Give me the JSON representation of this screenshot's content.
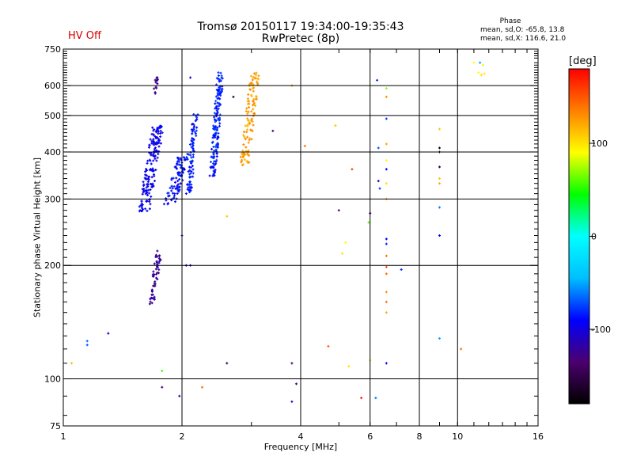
{
  "header": {
    "title_line1": "Tromsø 20150117 19:34:00-19:35:43",
    "title_line2": "RwPretec (8p)",
    "hv_status": "HV Off",
    "phase_heading": "Phase",
    "phase_o": "mean, sd,O: -65.8, 13.8",
    "phase_x": "mean, sd,X: 116.6, 21.0"
  },
  "colorbar": {
    "unit": "[deg]",
    "ticks": [
      {
        "value": 100,
        "label": "100"
      },
      {
        "value": 0,
        "label": "0"
      },
      {
        "value": -100,
        "label": "-100"
      }
    ],
    "range": [
      -180,
      180
    ],
    "stops": [
      "#000000",
      "#4b006e",
      "#0000ff",
      "#00bfff",
      "#00ffff",
      "#00ff00",
      "#ffff00",
      "#ff8000",
      "#ff0000"
    ]
  },
  "chart_data": {
    "type": "scatter",
    "title": "Tromsø 20150117 19:34:00-19:35:43",
    "subtitle": "RwPretec (8p)",
    "xlabel": "Frequency [MHz]",
    "ylabel": "Stationary phase Virtual Height [km]",
    "xscale": "log",
    "yscale": "log",
    "xlim": [
      1,
      16
    ],
    "ylim": [
      75,
      750
    ],
    "x_ticks": [
      {
        "value": 1,
        "label": "1"
      },
      {
        "value": 2,
        "label": "2"
      },
      {
        "value": 4,
        "label": "4"
      },
      {
        "value": 6,
        "label": "6"
      },
      {
        "value": 8,
        "label": "8"
      },
      {
        "value": 10,
        "label": "10"
      },
      {
        "value": 16,
        "label": "16"
      }
    ],
    "y_ticks": [
      {
        "value": 75,
        "label": "75"
      },
      {
        "value": 100,
        "label": "100"
      },
      {
        "value": 200,
        "label": "200"
      },
      {
        "value": 300,
        "label": "300"
      },
      {
        "value": 400,
        "label": "400"
      },
      {
        "value": 500,
        "label": "500"
      },
      {
        "value": 600,
        "label": "600"
      },
      {
        "value": 750,
        "label": "750"
      }
    ],
    "grid": true,
    "color_encodes": "phase [deg]",
    "clusters": [
      {
        "x_range": [
          1.55,
          1.8
        ],
        "y_range": [
          278,
          470
        ],
        "phase": -95,
        "count": 170
      },
      {
        "x_range": [
          1.8,
          2.1
        ],
        "y_range": [
          290,
          395
        ],
        "phase": -88,
        "count": 90
      },
      {
        "x_range": [
          2.05,
          2.2
        ],
        "y_range": [
          310,
          510
        ],
        "phase": -85,
        "count": 80
      },
      {
        "x_range": [
          2.35,
          2.55
        ],
        "y_range": [
          345,
          650
        ],
        "phase": -83,
        "count": 160
      },
      {
        "x_range": [
          2.8,
          3.15
        ],
        "y_range": [
          365,
          650
        ],
        "phase": 125,
        "count": 120
      },
      {
        "x_range": [
          1.65,
          1.78
        ],
        "y_range": [
          158,
          220
        ],
        "phase": -120,
        "count": 55
      },
      {
        "x_range": [
          1.68,
          1.75
        ],
        "y_range": [
          570,
          640
        ],
        "phase": -125,
        "count": 14
      }
    ],
    "points": [
      {
        "x": 1.05,
        "y": 110,
        "phase": 115
      },
      {
        "x": 1.15,
        "y": 123,
        "phase": -70
      },
      {
        "x": 1.15,
        "y": 126,
        "phase": -65
      },
      {
        "x": 1.3,
        "y": 132,
        "phase": -95
      },
      {
        "x": 1.78,
        "y": 105,
        "phase": 55
      },
      {
        "x": 1.78,
        "y": 95,
        "phase": -130
      },
      {
        "x": 1.97,
        "y": 90,
        "phase": -100
      },
      {
        "x": 2.0,
        "y": 240,
        "phase": -80
      },
      {
        "x": 2.05,
        "y": 200,
        "phase": -95
      },
      {
        "x": 2.1,
        "y": 200,
        "phase": -95
      },
      {
        "x": 2.1,
        "y": 630,
        "phase": -95
      },
      {
        "x": 2.25,
        "y": 95,
        "phase": 140
      },
      {
        "x": 2.6,
        "y": 110,
        "phase": -150
      },
      {
        "x": 2.6,
        "y": 270,
        "phase": 110
      },
      {
        "x": 2.7,
        "y": 560,
        "phase": -155
      },
      {
        "x": 3.4,
        "y": 455,
        "phase": -130
      },
      {
        "x": 3.8,
        "y": 110,
        "phase": -140
      },
      {
        "x": 3.8,
        "y": 87,
        "phase": -110
      },
      {
        "x": 3.9,
        "y": 97,
        "phase": -140
      },
      {
        "x": 3.8,
        "y": 600,
        "phase": 130
      },
      {
        "x": 4.1,
        "y": 415,
        "phase": 140
      },
      {
        "x": 4.7,
        "y": 122,
        "phase": 150
      },
      {
        "x": 4.9,
        "y": 470,
        "phase": 110
      },
      {
        "x": 5.0,
        "y": 280,
        "phase": -130
      },
      {
        "x": 5.1,
        "y": 215,
        "phase": 100
      },
      {
        "x": 5.2,
        "y": 230,
        "phase": 90
      },
      {
        "x": 5.3,
        "y": 108,
        "phase": 100
      },
      {
        "x": 5.4,
        "y": 360,
        "phase": 155
      },
      {
        "x": 5.7,
        "y": 89,
        "phase": 170
      },
      {
        "x": 5.95,
        "y": 260,
        "phase": 60
      },
      {
        "x": 6.0,
        "y": 112,
        "phase": 100
      },
      {
        "x": 6.0,
        "y": 275,
        "phase": -140
      },
      {
        "x": 6.2,
        "y": 89,
        "phase": -60
      },
      {
        "x": 6.25,
        "y": 620,
        "phase": -80
      },
      {
        "x": 6.3,
        "y": 410,
        "phase": -70
      },
      {
        "x": 6.3,
        "y": 335,
        "phase": -110
      },
      {
        "x": 6.35,
        "y": 320,
        "phase": -80
      },
      {
        "x": 6.6,
        "y": 590,
        "phase": 70
      },
      {
        "x": 6.6,
        "y": 560,
        "phase": 130
      },
      {
        "x": 6.6,
        "y": 490,
        "phase": -75
      },
      {
        "x": 6.6,
        "y": 420,
        "phase": 120
      },
      {
        "x": 6.6,
        "y": 380,
        "phase": 90
      },
      {
        "x": 6.6,
        "y": 360,
        "phase": -90
      },
      {
        "x": 6.6,
        "y": 330,
        "phase": 100
      },
      {
        "x": 6.6,
        "y": 300,
        "phase": 120
      },
      {
        "x": 6.6,
        "y": 235,
        "phase": -90
      },
      {
        "x": 6.6,
        "y": 228,
        "phase": -80
      },
      {
        "x": 6.6,
        "y": 212,
        "phase": 140
      },
      {
        "x": 6.6,
        "y": 198,
        "phase": 150
      },
      {
        "x": 6.6,
        "y": 190,
        "phase": 140
      },
      {
        "x": 6.6,
        "y": 170,
        "phase": 130
      },
      {
        "x": 6.6,
        "y": 160,
        "phase": 140
      },
      {
        "x": 6.6,
        "y": 150,
        "phase": 120
      },
      {
        "x": 6.6,
        "y": 110,
        "phase": -90
      },
      {
        "x": 7.2,
        "y": 195,
        "phase": -80
      },
      {
        "x": 9.0,
        "y": 460,
        "phase": 110
      },
      {
        "x": 9.0,
        "y": 410,
        "phase": -170
      },
      {
        "x": 9.0,
        "y": 400,
        "phase": -160
      },
      {
        "x": 9.0,
        "y": 365,
        "phase": -150
      },
      {
        "x": 9.0,
        "y": 340,
        "phase": 110
      },
      {
        "x": 9.0,
        "y": 330,
        "phase": 120
      },
      {
        "x": 9.0,
        "y": 285,
        "phase": -60
      },
      {
        "x": 9.0,
        "y": 240,
        "phase": -90
      },
      {
        "x": 9.0,
        "y": 128,
        "phase": -50
      },
      {
        "x": 10.2,
        "y": 120,
        "phase": 140
      },
      {
        "x": 11.0,
        "y": 690,
        "phase": 90
      },
      {
        "x": 11.4,
        "y": 690,
        "phase": -50
      },
      {
        "x": 11.6,
        "y": 680,
        "phase": 85
      },
      {
        "x": 11.3,
        "y": 650,
        "phase": 90
      },
      {
        "x": 11.5,
        "y": 640,
        "phase": 100
      },
      {
        "x": 11.7,
        "y": 645,
        "phase": 95
      }
    ]
  }
}
